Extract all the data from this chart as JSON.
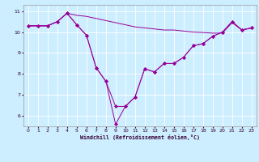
{
  "background_color": "#cceeff",
  "line_color": "#990099",
  "grid_color": "#ffffff",
  "xlim": [
    -0.5,
    23.5
  ],
  "ylim": [
    5.5,
    11.3
  ],
  "xticks": [
    0,
    1,
    2,
    3,
    4,
    5,
    6,
    7,
    8,
    9,
    10,
    11,
    12,
    13,
    14,
    15,
    16,
    17,
    18,
    19,
    20,
    21,
    22,
    23
  ],
  "yticks": [
    6,
    7,
    8,
    9,
    10,
    11
  ],
  "xlabel": "Windchill (Refroidissement éolien,°C)",
  "series": [
    {
      "x": [
        0,
        1,
        2,
        3,
        4,
        5,
        6,
        7,
        8,
        9,
        10,
        11,
        12,
        13,
        14,
        15,
        16,
        17,
        18,
        19,
        20,
        21,
        22,
        23
      ],
      "y": [
        10.3,
        10.3,
        10.3,
        10.5,
        10.9,
        10.8,
        10.75,
        10.65,
        10.55,
        10.45,
        10.35,
        10.25,
        10.2,
        10.15,
        10.1,
        10.1,
        10.05,
        10.0,
        9.98,
        9.95,
        9.95,
        10.45,
        10.1,
        10.2
      ],
      "linestyle": "-",
      "has_markers": false
    },
    {
      "x": [
        0,
        1,
        2,
        3,
        4,
        5,
        6,
        7,
        8,
        9,
        10,
        11,
        12,
        13,
        14,
        15,
        16,
        17,
        18,
        19,
        20,
        21,
        22,
        23
      ],
      "y": [
        10.3,
        10.3,
        10.3,
        10.5,
        10.9,
        10.35,
        9.85,
        8.3,
        7.65,
        6.45,
        6.45,
        6.9,
        8.25,
        8.1,
        8.5,
        8.5,
        8.8,
        9.35,
        9.45,
        9.8,
        10.0,
        10.5,
        10.1,
        10.2
      ],
      "linestyle": "-",
      "has_markers": true
    },
    {
      "x": [
        0,
        1,
        2,
        3,
        4,
        5,
        6,
        7,
        8,
        9,
        10,
        11,
        12,
        13,
        14,
        15,
        16,
        17,
        18,
        19,
        20,
        21,
        22,
        23
      ],
      "y": [
        10.3,
        10.3,
        10.3,
        10.5,
        10.9,
        10.35,
        9.85,
        8.3,
        7.65,
        5.6,
        6.45,
        6.9,
        8.25,
        8.1,
        8.5,
        8.5,
        8.8,
        9.35,
        9.45,
        9.8,
        10.0,
        10.5,
        10.1,
        10.2
      ],
      "linestyle": "-",
      "has_markers": true
    }
  ]
}
